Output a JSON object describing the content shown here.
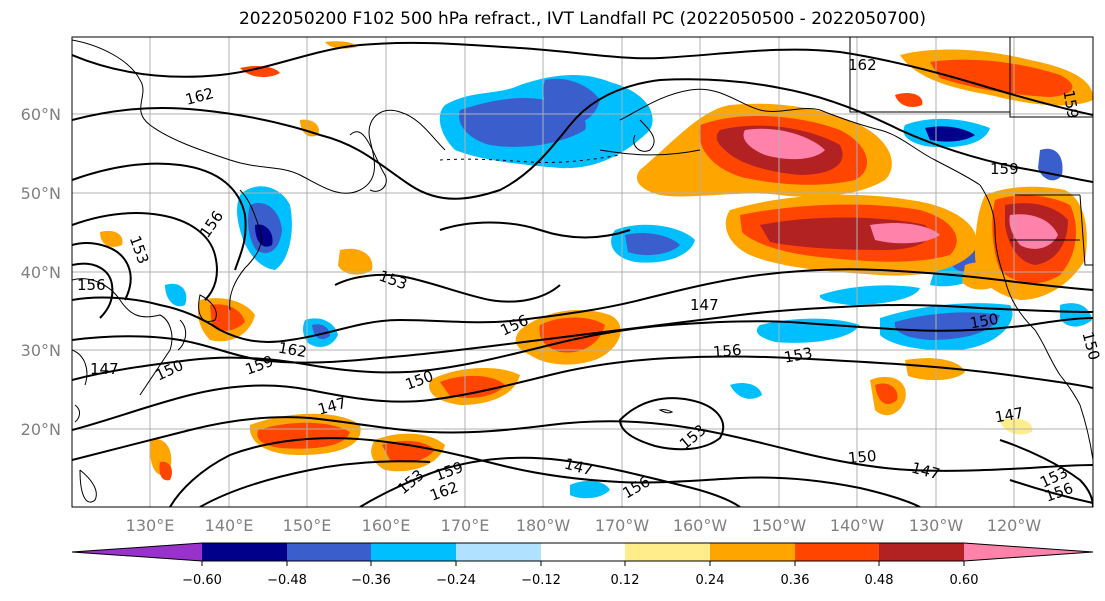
{
  "title": "2022050200 F102 500 hPa refract., IVT Landfall PC (2022050500 - 2022050700)",
  "lat_labels": [
    "60°N",
    "50°N",
    "40°N",
    "30°N",
    "20°N"
  ],
  "lon_labels": [
    "130°E",
    "140°E",
    "150°E",
    "160°E",
    "170°E",
    "180°W",
    "170°W",
    "160°W",
    "150°W",
    "140°W",
    "130°W",
    "120°W"
  ],
  "colorbar": {
    "colors": [
      "#9932cc",
      "#00008b",
      "#3a5fcd",
      "#00bfff",
      "#b0e2ff",
      "#ffffff",
      "#ffec8b",
      "#ffa500",
      "#ff4500",
      "#b22222",
      "#ff82ab"
    ],
    "ticks": [
      "−0.60",
      "−0.48",
      "−0.36",
      "−0.24",
      "−0.12",
      "0.12",
      "0.24",
      "0.36",
      "0.48",
      "0.60"
    ]
  },
  "contour_labels": [
    "162",
    "162",
    "159",
    "159",
    "156",
    "153",
    "156",
    "156",
    "153",
    "150",
    "150",
    "150",
    "147",
    "147",
    "147",
    "147",
    "147",
    "153",
    "153",
    "159",
    "162",
    "156",
    "150",
    "153",
    "156",
    "162",
    "159",
    "156",
    "153",
    "150",
    "147"
  ]
}
